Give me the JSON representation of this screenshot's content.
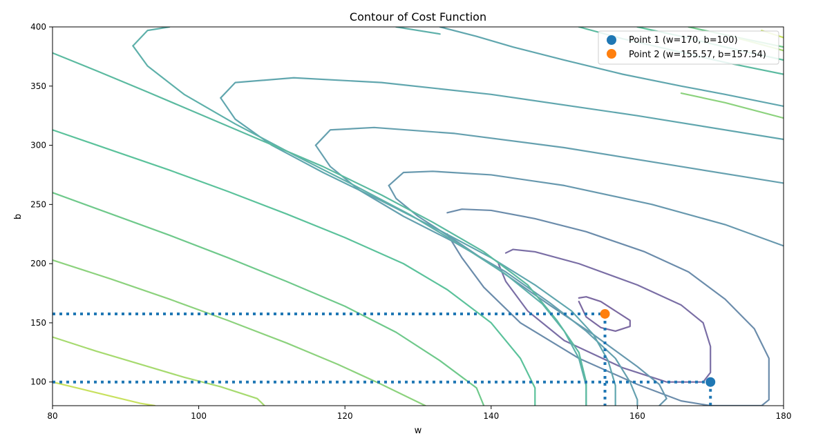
{
  "chart_data": {
    "type": "contour",
    "title": "Contour of Cost Function",
    "xlabel": "w",
    "ylabel": "b",
    "xlim": [
      80,
      180
    ],
    "ylim": [
      80,
      400
    ],
    "xticks": [
      80,
      100,
      120,
      140,
      160,
      180
    ],
    "yticks": [
      100,
      150,
      200,
      250,
      300,
      350,
      400
    ],
    "legend_position": "top-right",
    "points": [
      {
        "name": "Point 1 (w=170, b=100)",
        "w": 170,
        "b": 100,
        "color": "#1f77b4"
      },
      {
        "name": "Point 2 (w=155.57, b=157.54)",
        "w": 155.57,
        "b": 157.54,
        "color": "#ff7f0e"
      }
    ],
    "dotted_color": "#1f77b4",
    "contours": [
      {
        "level": 1,
        "color": "#7b69a1",
        "points": [
          [
            152,
            171
          ],
          [
            153,
            172
          ],
          [
            155,
            168
          ],
          [
            157,
            160
          ],
          [
            159,
            152
          ],
          [
            159,
            147
          ],
          [
            157,
            143
          ],
          [
            155,
            146
          ],
          [
            153,
            155
          ],
          [
            152,
            168
          ]
        ]
      },
      {
        "level": 2,
        "color": "#7a6ea5",
        "points": [
          [
            142,
            209
          ],
          [
            143,
            212
          ],
          [
            146,
            210
          ],
          [
            152,
            200
          ],
          [
            160,
            182
          ],
          [
            166,
            165
          ],
          [
            169,
            150
          ],
          [
            170,
            130
          ],
          [
            170,
            108
          ],
          [
            169,
            100
          ],
          [
            164,
            100
          ],
          [
            158,
            112
          ],
          [
            150,
            135
          ],
          [
            145,
            160
          ],
          [
            142,
            185
          ],
          [
            141,
            200
          ]
        ]
      },
      {
        "level": 3,
        "color": "#6b8cab",
        "points": [
          [
            134,
            243
          ],
          [
            136,
            246
          ],
          [
            140,
            245
          ],
          [
            146,
            238
          ],
          [
            153,
            227
          ],
          [
            161,
            210
          ],
          [
            167,
            193
          ],
          [
            172,
            170
          ],
          [
            176,
            145
          ],
          [
            178,
            120
          ],
          [
            178,
            85
          ],
          [
            177,
            80
          ],
          [
            170,
            80
          ],
          [
            166,
            84
          ],
          [
            160,
            98
          ],
          [
            152,
            120
          ],
          [
            144,
            150
          ],
          [
            139,
            180
          ],
          [
            136,
            205
          ],
          [
            134,
            225
          ]
        ]
      },
      {
        "level": 4,
        "color": "#6798ae",
        "points": [
          [
            126,
            266
          ],
          [
            128,
            277
          ],
          [
            132,
            278
          ],
          [
            140,
            275
          ],
          [
            150,
            266
          ],
          [
            162,
            250
          ],
          [
            172,
            233
          ],
          [
            180,
            215
          ]
        ]
      },
      {
        "level": 4.5,
        "color": "#6798ae",
        "points": [
          [
            126,
            266
          ],
          [
            127,
            255
          ],
          [
            130,
            240
          ],
          [
            135,
            220
          ],
          [
            141,
            195
          ],
          [
            148,
            165
          ],
          [
            154,
            140
          ],
          [
            160,
            113
          ],
          [
            163,
            98
          ],
          [
            164,
            86
          ],
          [
            163,
            80
          ]
        ]
      },
      {
        "level": 5,
        "color": "#65a0af",
        "points": [
          [
            116,
            300
          ],
          [
            118,
            313
          ],
          [
            124,
            315
          ],
          [
            135,
            310
          ],
          [
            150,
            298
          ],
          [
            166,
            282
          ],
          [
            180,
            268
          ]
        ]
      },
      {
        "level": 5.5,
        "color": "#65a0af",
        "points": [
          [
            116,
            300
          ],
          [
            118,
            282
          ],
          [
            122,
            262
          ],
          [
            128,
            240
          ],
          [
            135,
            218
          ],
          [
            142,
            193
          ],
          [
            148,
            167
          ],
          [
            153,
            143
          ],
          [
            157,
            120
          ],
          [
            159,
            100
          ],
          [
            160,
            85
          ],
          [
            160,
            80
          ]
        ]
      },
      {
        "level": 6,
        "color": "#60a6ae",
        "points": [
          [
            103,
            340
          ],
          [
            105,
            353
          ],
          [
            113,
            357
          ],
          [
            125,
            353
          ],
          [
            140,
            343
          ],
          [
            160,
            325
          ],
          [
            180,
            305
          ]
        ]
      },
      {
        "level": 6.5,
        "color": "#60a6ae",
        "points": [
          [
            103,
            340
          ],
          [
            105,
            322
          ],
          [
            110,
            300
          ],
          [
            117,
            277
          ],
          [
            125,
            253
          ],
          [
            133,
            228
          ],
          [
            140,
            205
          ],
          [
            146,
            182
          ],
          [
            151,
            160
          ],
          [
            154,
            140
          ],
          [
            156,
            118
          ],
          [
            157,
            97
          ],
          [
            157,
            80
          ]
        ]
      },
      {
        "level": 7,
        "color": "#5eb0aa",
        "points": [
          [
            91,
            384
          ],
          [
            93,
            397
          ],
          [
            96,
            400
          ]
        ]
      },
      {
        "level": 7.5,
        "color": "#5eb0aa",
        "points": [
          [
            91,
            384
          ],
          [
            93,
            367
          ],
          [
            98,
            343
          ],
          [
            105,
            318
          ],
          [
            113,
            292
          ],
          [
            121,
            267
          ],
          [
            129,
            241
          ],
          [
            136,
            215
          ],
          [
            142,
            191
          ],
          [
            147,
            166
          ],
          [
            150,
            143
          ],
          [
            152,
            120
          ],
          [
            153,
            97
          ],
          [
            153,
            80
          ]
        ]
      },
      {
        "level": 8,
        "color": "#5bbaa0",
        "points": [
          [
            80,
            378
          ],
          [
            86,
            363
          ],
          [
            93,
            345
          ],
          [
            101,
            324
          ],
          [
            109,
            303
          ],
          [
            117,
            282
          ],
          [
            125,
            258
          ],
          [
            132,
            235
          ],
          [
            139,
            210
          ],
          [
            145,
            182
          ],
          [
            149,
            152
          ],
          [
            152,
            125
          ],
          [
            153,
            100
          ],
          [
            153,
            80
          ]
        ]
      },
      {
        "level": 9,
        "color": "#5bc29b",
        "points": [
          [
            80,
            313
          ],
          [
            88,
            296
          ],
          [
            96,
            279
          ],
          [
            104,
            261
          ],
          [
            112,
            242
          ],
          [
            120,
            222
          ],
          [
            128,
            200
          ],
          [
            134,
            178
          ],
          [
            140,
            150
          ],
          [
            144,
            120
          ],
          [
            146,
            95
          ],
          [
            146,
            80
          ]
        ]
      },
      {
        "level": 10,
        "color": "#6fc98b",
        "points": [
          [
            80,
            260
          ],
          [
            88,
            242
          ],
          [
            96,
            224
          ],
          [
            104,
            205
          ],
          [
            112,
            185
          ],
          [
            120,
            164
          ],
          [
            127,
            142
          ],
          [
            133,
            118
          ],
          [
            138,
            95
          ],
          [
            139,
            80
          ]
        ]
      },
      {
        "level": 11,
        "color": "#8cd27d",
        "points": [
          [
            80,
            203
          ],
          [
            88,
            187
          ],
          [
            96,
            170
          ],
          [
            104,
            152
          ],
          [
            112,
            133
          ],
          [
            119,
            115
          ],
          [
            125,
            98
          ],
          [
            129,
            86
          ],
          [
            131,
            80
          ]
        ]
      },
      {
        "level": 12,
        "color": "#a6da6f",
        "points": [
          [
            80,
            138
          ],
          [
            86,
            126
          ],
          [
            92,
            115
          ],
          [
            98,
            104
          ],
          [
            103,
            96
          ],
          [
            108,
            86
          ],
          [
            109,
            80
          ]
        ]
      },
      {
        "level": 13,
        "color": "#c8e15f",
        "points": [
          [
            80,
            100
          ],
          [
            84,
            94
          ],
          [
            88,
            88
          ],
          [
            92,
            82
          ],
          [
            94,
            80
          ]
        ]
      },
      {
        "level": 14,
        "color": "#60a6ae",
        "points": [
          [
            133,
            400
          ],
          [
            138,
            392
          ],
          [
            143,
            383
          ],
          [
            150,
            372
          ],
          [
            158,
            360
          ],
          [
            166,
            350
          ],
          [
            172,
            343
          ],
          [
            180,
            333
          ]
        ]
      },
      {
        "level": 15,
        "color": "#5eb0aa",
        "points": [
          [
            127,
            400
          ],
          [
            133,
            394
          ]
        ]
      },
      {
        "level": 16,
        "color": "#5bbaa0",
        "points": [
          [
            152,
            400
          ],
          [
            158,
            390
          ],
          [
            165,
            380
          ],
          [
            172,
            370
          ],
          [
            180,
            360
          ]
        ]
      },
      {
        "level": 17,
        "color": "#5bc29b",
        "points": [
          [
            160,
            400
          ],
          [
            166,
            392
          ],
          [
            172,
            383
          ],
          [
            180,
            372
          ]
        ]
      },
      {
        "level": 18,
        "color": "#6fc98b",
        "points": [
          [
            167,
            400
          ],
          [
            173,
            392
          ],
          [
            180,
            383
          ]
        ]
      },
      {
        "level": 19,
        "color": "#8cd27d",
        "points": [
          [
            166,
            344
          ],
          [
            172,
            336
          ],
          [
            180,
            323
          ]
        ]
      },
      {
        "level": 20,
        "color": "#a6da6f",
        "points": [
          [
            174,
            390
          ],
          [
            177,
            385
          ],
          [
            180,
            380
          ]
        ]
      },
      {
        "level": 21,
        "color": "#c8e15f",
        "points": [
          [
            177,
            397
          ],
          [
            179,
            393
          ],
          [
            180,
            391
          ]
        ]
      }
    ]
  }
}
